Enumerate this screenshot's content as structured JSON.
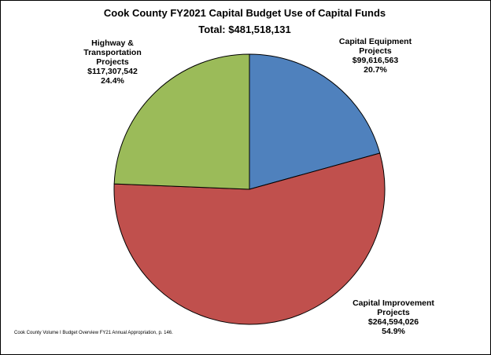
{
  "chart_data": {
    "type": "pie",
    "title": "Cook County FY2021 Capital Budget Use of Capital Funds",
    "subtitle": "Total: $481,518,131",
    "slices": [
      {
        "name_lines": [
          "Capital Equipment",
          "Projects"
        ],
        "amount": "$99,616,563",
        "percent_label": "20.7%",
        "value": 99616563,
        "color": "#4F81BD"
      },
      {
        "name_lines": [
          "Capital Improvement",
          "Projects"
        ],
        "amount": "$264,594,026",
        "percent_label": "54.9%",
        "value": 264594026,
        "color": "#C0504D"
      },
      {
        "name_lines": [
          "Highway &",
          "Transportation",
          "Projects"
        ],
        "amount": "$117,307,542",
        "percent_label": "24.4%",
        "value": 117307542,
        "color": "#9BBB59"
      }
    ]
  },
  "source_note": "Cook County Volume I Budget Overview FY21 Annual Appropriation, p. 146."
}
